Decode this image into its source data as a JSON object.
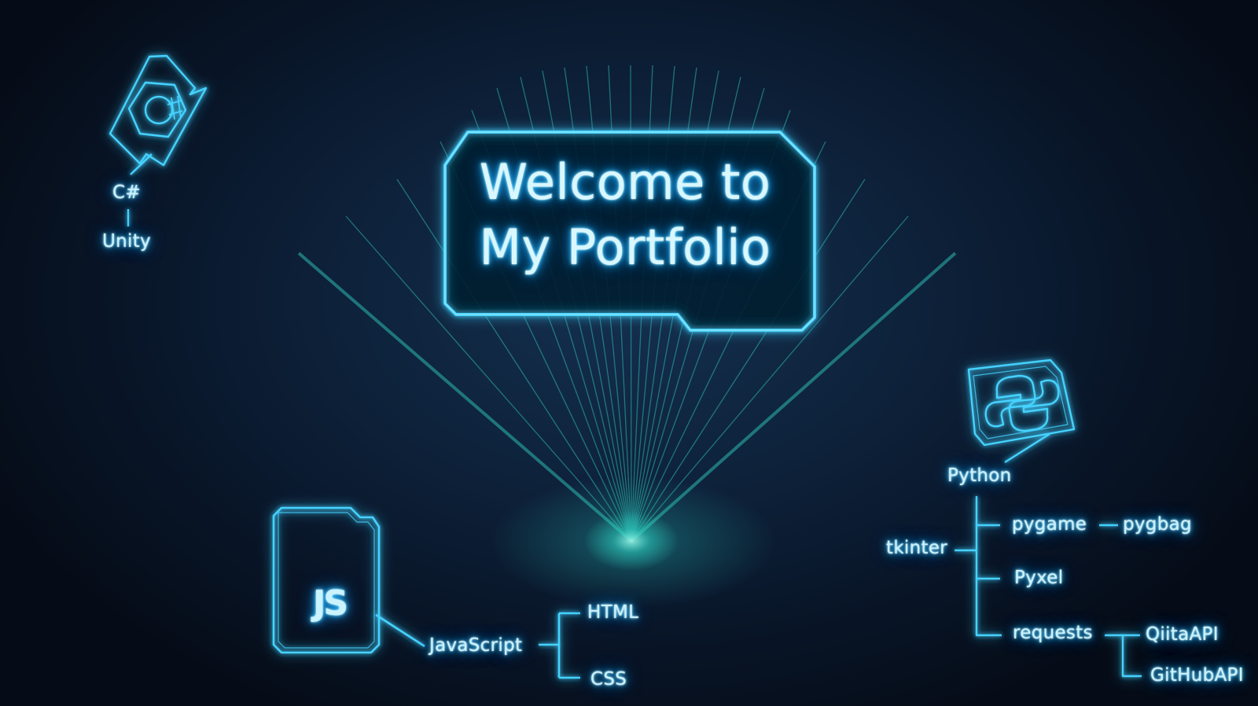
{
  "title": {
    "line1": "Welcome to",
    "line2": "My Portfolio"
  },
  "csharp_tree": {
    "icon": "csharp-icon",
    "root": "C#",
    "child": "Unity"
  },
  "javascript_tree": {
    "icon": "javascript-icon",
    "icon_text": "JS",
    "root": "JavaScript",
    "children": [
      "HTML",
      "CSS"
    ]
  },
  "python_tree": {
    "icon": "python-icon",
    "root": "Python",
    "children": [
      "tkinter",
      "pygame",
      "pygbag",
      "Pyxel",
      "requests",
      "QiitaAPI",
      "GitHubAPI"
    ]
  },
  "colors": {
    "neon": "#3fd0ff",
    "neon_core": "#c9f3ff",
    "beam": "#2fd6c6",
    "background": "#0d2038"
  }
}
